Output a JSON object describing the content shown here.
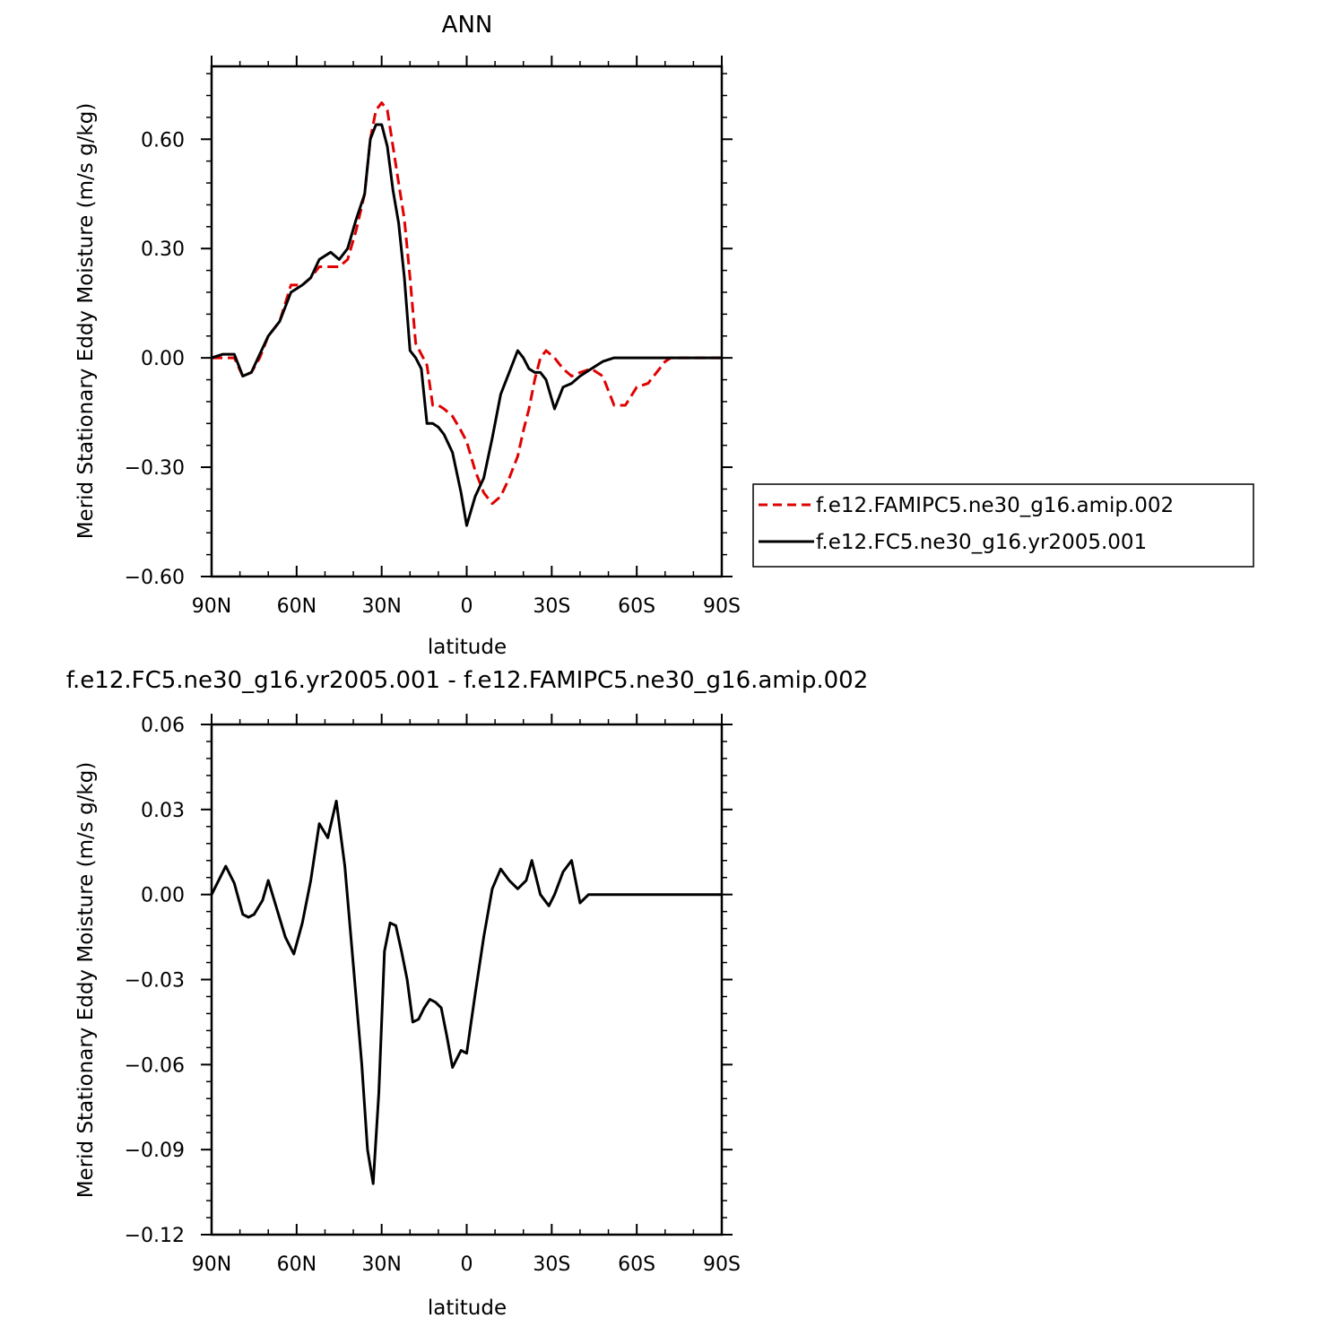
{
  "chart_data": [
    {
      "type": "line",
      "title": "ANN",
      "xlabel": "latitude",
      "ylabel": "Merid Stationary Eddy Moisture (m/s g/kg)",
      "xlim": [
        90,
        -90
      ],
      "ylim": [
        -0.6,
        0.8
      ],
      "xticks": [
        {
          "value": 90,
          "label": "90N"
        },
        {
          "value": 60,
          "label": "60N"
        },
        {
          "value": 30,
          "label": "30N"
        },
        {
          "value": 0,
          "label": "0"
        },
        {
          "value": -30,
          "label": "30S"
        },
        {
          "value": -60,
          "label": "60S"
        },
        {
          "value": -90,
          "label": "90S"
        }
      ],
      "yticks": [
        {
          "value": 0.6,
          "label": "0.60"
        },
        {
          "value": 0.3,
          "label": "0.30"
        },
        {
          "value": 0.0,
          "label": "0.00"
        },
        {
          "value": -0.3,
          "label": "−0.30"
        },
        {
          "value": -0.6,
          "label": "−0.60"
        }
      ],
      "legend": [
        {
          "label": "f.e12.FAMIPC5.ne30_g16.amip.002",
          "color": "#e00000",
          "dash": "dashed"
        },
        {
          "label": "f.e12.FC5.ne30_g16.yr2005.001",
          "color": "#000000",
          "dash": "solid"
        }
      ],
      "legend_position": "right",
      "x": [
        90,
        86,
        82,
        79,
        76,
        73,
        70,
        66,
        62,
        58,
        55,
        52,
        48,
        45,
        42,
        39,
        36,
        34,
        32,
        30,
        28,
        26,
        24,
        22,
        20,
        18,
        16,
        14,
        12,
        10,
        8,
        5,
        2,
        0,
        -3,
        -6,
        -9,
        -12,
        -15,
        -18,
        -20,
        -22,
        -24,
        -26,
        -28,
        -31,
        -34,
        -37,
        -40,
        -44,
        -48,
        -52,
        -56,
        -60,
        -64,
        -66,
        -68,
        -70,
        -72,
        -74,
        -76,
        -79,
        -82,
        -86,
        -90
      ],
      "series": [
        {
          "name": "f.e12.FAMIPC5.ne30_g16.amip.002",
          "color": "#e00000",
          "dash": "dashed",
          "values": [
            0.0,
            0.0,
            0.0,
            -0.05,
            -0.04,
            0.0,
            0.06,
            0.1,
            0.2,
            0.2,
            0.22,
            0.25,
            0.25,
            0.25,
            0.27,
            0.35,
            0.45,
            0.6,
            0.68,
            0.7,
            0.68,
            0.58,
            0.48,
            0.38,
            0.22,
            0.04,
            0.01,
            -0.02,
            -0.13,
            -0.13,
            -0.14,
            -0.16,
            -0.2,
            -0.23,
            -0.31,
            -0.37,
            -0.4,
            -0.38,
            -0.33,
            -0.27,
            -0.2,
            -0.14,
            -0.06,
            0.0,
            0.02,
            0.0,
            -0.03,
            -0.05,
            -0.04,
            -0.03,
            -0.05,
            -0.13,
            -0.13,
            -0.08,
            -0.07,
            -0.05,
            -0.03,
            -0.01,
            0.0,
            0.0,
            0.0,
            0.0,
            0.0,
            0.0,
            0.0
          ]
        },
        {
          "name": "f.e12.FC5.ne30_g16.yr2005.001",
          "color": "#000000",
          "dash": "solid",
          "values": [
            0.0,
            0.01,
            0.01,
            -0.05,
            -0.04,
            0.01,
            0.06,
            0.1,
            0.18,
            0.2,
            0.22,
            0.27,
            0.29,
            0.27,
            0.3,
            0.38,
            0.45,
            0.6,
            0.64,
            0.64,
            0.58,
            0.46,
            0.37,
            0.22,
            0.02,
            0.0,
            -0.03,
            -0.18,
            -0.18,
            -0.19,
            -0.21,
            -0.26,
            -0.37,
            -0.46,
            -0.38,
            -0.33,
            -0.22,
            -0.1,
            -0.04,
            0.02,
            0.0,
            -0.03,
            -0.04,
            -0.04,
            -0.06,
            -0.14,
            -0.08,
            -0.07,
            -0.05,
            -0.03,
            -0.01,
            0.0,
            0.0,
            0.0,
            0.0,
            0.0,
            0.0,
            0.0,
            0.0,
            0.0,
            0.0,
            0.0,
            0.0,
            0.0,
            0.0
          ]
        }
      ]
    },
    {
      "type": "line",
      "title": "f.e12.FC5.ne30_g16.yr2005.001 - f.e12.FAMIPC5.ne30_g16.amip.002",
      "xlabel": "latitude",
      "ylabel": "Merid Stationary Eddy Moisture (m/s g/kg)",
      "xlim": [
        90,
        -90
      ],
      "ylim": [
        -0.12,
        0.06
      ],
      "xticks": [
        {
          "value": 90,
          "label": "90N"
        },
        {
          "value": 60,
          "label": "60N"
        },
        {
          "value": 30,
          "label": "30N"
        },
        {
          "value": 0,
          "label": "0"
        },
        {
          "value": -30,
          "label": "30S"
        },
        {
          "value": -60,
          "label": "60S"
        },
        {
          "value": -90,
          "label": "90S"
        }
      ],
      "yticks": [
        {
          "value": 0.06,
          "label": "0.06"
        },
        {
          "value": 0.03,
          "label": "0.03"
        },
        {
          "value": 0.0,
          "label": "0.00"
        },
        {
          "value": -0.03,
          "label": "−0.03"
        },
        {
          "value": -0.06,
          "label": "−0.06"
        },
        {
          "value": -0.09,
          "label": "−0.09"
        },
        {
          "value": -0.12,
          "label": "−0.12"
        }
      ],
      "x": [
        90,
        87,
        85,
        82,
        79,
        77,
        75,
        72,
        70,
        67,
        64,
        61,
        58,
        55,
        52,
        49,
        46,
        43,
        40,
        37,
        35,
        33,
        31,
        29,
        27,
        25,
        23,
        21,
        19,
        17,
        15,
        13,
        11,
        9,
        7,
        5,
        2,
        0,
        -3,
        -6,
        -9,
        -12,
        -15,
        -18,
        -21,
        -23,
        -26,
        -29,
        -31,
        -34,
        -37,
        -40,
        -43,
        -46,
        -49,
        -52,
        -55,
        -58,
        -61,
        -64,
        -66,
        -68,
        -70,
        -72,
        -74,
        -76,
        -78,
        -80,
        -82,
        -84,
        -86,
        -88,
        -90
      ],
      "series": [
        {
          "name": "",
          "color": "#000000",
          "dash": "solid",
          "values": [
            0.0,
            0.006,
            0.01,
            0.004,
            -0.007,
            -0.008,
            -0.007,
            -0.002,
            0.005,
            -0.005,
            -0.015,
            -0.021,
            -0.01,
            0.005,
            0.025,
            0.02,
            0.033,
            0.01,
            -0.025,
            -0.06,
            -0.09,
            -0.102,
            -0.07,
            -0.02,
            -0.01,
            -0.011,
            -0.02,
            -0.03,
            -0.045,
            -0.044,
            -0.04,
            -0.037,
            -0.038,
            -0.04,
            -0.05,
            -0.061,
            -0.055,
            -0.056,
            -0.035,
            -0.015,
            0.002,
            0.009,
            0.005,
            0.002,
            0.005,
            0.012,
            0.0,
            -0.004,
            0.0,
            0.008,
            0.012,
            -0.003,
            0.0,
            0.0,
            0.0,
            0.0,
            0.0,
            0.0,
            0.0,
            0.0,
            0.0,
            0.0,
            0.0,
            0.0,
            0.0,
            0.0,
            0.0,
            0.0,
            0.0,
            0.0,
            0.0,
            0.0,
            0.0
          ]
        }
      ]
    }
  ]
}
